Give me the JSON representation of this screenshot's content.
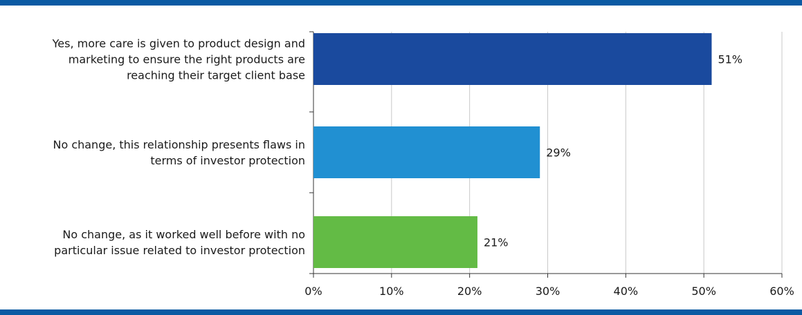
{
  "chart_data": {
    "type": "bar",
    "orientation": "horizontal",
    "categories": [
      [
        "Yes, more care is given to product design and",
        "marketing to ensure the right products are",
        "reaching their target client base"
      ],
      [
        "No change, this relationship presents flaws in",
        "terms of investor protection"
      ],
      [
        "No change, as it worked well before with no",
        "particular issue related to investor protection"
      ]
    ],
    "values": [
      51,
      29,
      21
    ],
    "value_labels": [
      "51%",
      "29%",
      "21%"
    ],
    "xlim": [
      0,
      60
    ],
    "xticks": [
      0,
      10,
      20,
      30,
      40,
      50,
      60
    ],
    "xtick_labels": [
      "0%",
      "10%",
      "20%",
      "30%",
      "40%",
      "50%",
      "60%"
    ],
    "grid": "vertical",
    "title": "",
    "xlabel": "",
    "ylabel": ""
  },
  "colors": {
    "rule": "#0b5aa3",
    "bars": [
      "#1a4a9e",
      "#2190d2",
      "#63bb45"
    ],
    "grid": "#c8c8c8",
    "axis": "#333333"
  }
}
